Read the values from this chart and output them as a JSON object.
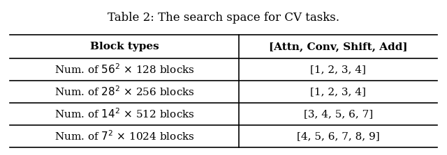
{
  "title": "Table 2: The search space for CV tasks.",
  "col_headers": [
    "Block types",
    "[Attn, Conv, Shift, Add]"
  ],
  "row_labels_left": [
    "Num. of $56^2$ $\\times$ 128 blocks",
    "Num. of $28^2$ $\\times$ 256 blocks",
    "Num. of $14^2$ $\\times$ 512 blocks",
    "Num. of $7^2$ $\\times$ 1024 blocks"
  ],
  "row_labels_right": [
    "[1, 2, 3, 4]",
    "[1, 2, 3, 4]",
    "[3, 4, 5, 6, 7]",
    "[4, 5, 6, 7, 8, 9]"
  ],
  "background_color": "#ffffff",
  "text_color": "#000000",
  "line_color": "#000000",
  "font_size": 11,
  "title_font_size": 12,
  "fig_width": 6.4,
  "fig_height": 2.23
}
